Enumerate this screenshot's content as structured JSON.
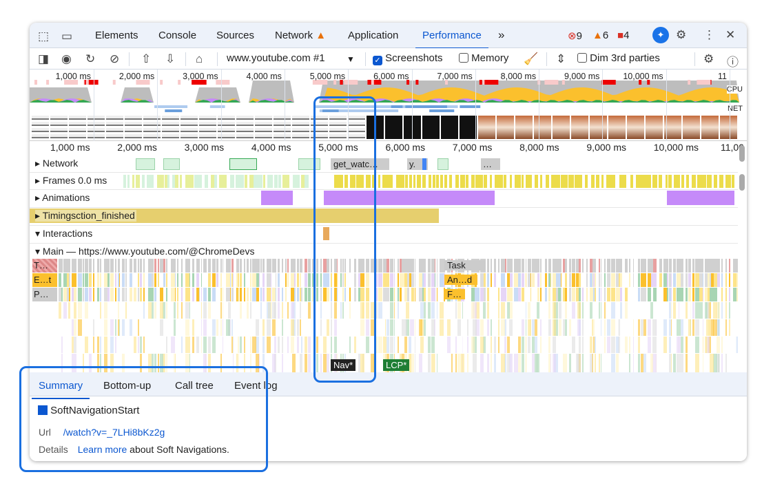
{
  "tabs": [
    "Elements",
    "Console",
    "Sources",
    "Network",
    "Application",
    "Performance"
  ],
  "active_tab": "Performance",
  "more_tabs": "»",
  "badges": {
    "errors": "9",
    "warnings": "6",
    "issues": "4"
  },
  "toolbar": {
    "recording": "www.youtube.com #1",
    "screenshots_label": "Screenshots",
    "screenshots_checked": true,
    "memory_label": "Memory",
    "memory_checked": false,
    "dim_label": "Dim 3rd parties",
    "dim_checked": false
  },
  "overview": {
    "ticks": [
      "1,000 ms",
      "2,000 ms",
      "3,000 ms",
      "4,000 ms",
      "5,000 ms",
      "6,000 ms",
      "7,000 ms",
      "8,000 ms",
      "9,000 ms",
      "10,000 ms",
      "11"
    ],
    "cpu_label": "CPU",
    "net_label": "NET"
  },
  "timeline": {
    "ticks": [
      "1,000 ms",
      "2,000 ms",
      "3,000 ms",
      "4,000 ms",
      "5,000 ms",
      "6,000 ms",
      "7,000 ms",
      "8,000 ms",
      "9,000 ms",
      "10,000 ms",
      "11,00"
    ]
  },
  "tracks": {
    "network": "Network",
    "network_req1": "get_watc…",
    "network_req2": "y.",
    "network_req3": "…",
    "frames": "Frames",
    "frames_value": "0.0 ms",
    "animations": "Animations",
    "timings": "Timings",
    "timings_event": "ction_finished",
    "interactions": "Interactions",
    "main": "Main — https://www.youtube.com/@ChromeDevs",
    "flame": [
      "T…",
      "E…t",
      "P…",
      "Task",
      "An…d",
      "F…"
    ],
    "markers": {
      "nav": "Nav*",
      "lcp": "LCP*"
    }
  },
  "bottom": {
    "tabs": [
      "Summary",
      "Bottom-up",
      "Call tree",
      "Event log"
    ],
    "active": "Summary",
    "event_name": "SoftNavigationStart",
    "event_color": "#0b57d0",
    "url_label": "Url",
    "url_value": "/watch?v=_7LHi8bKz2g",
    "details_label": "Details",
    "learn_more": "Learn more",
    "details_text": " about Soft Navigations."
  }
}
